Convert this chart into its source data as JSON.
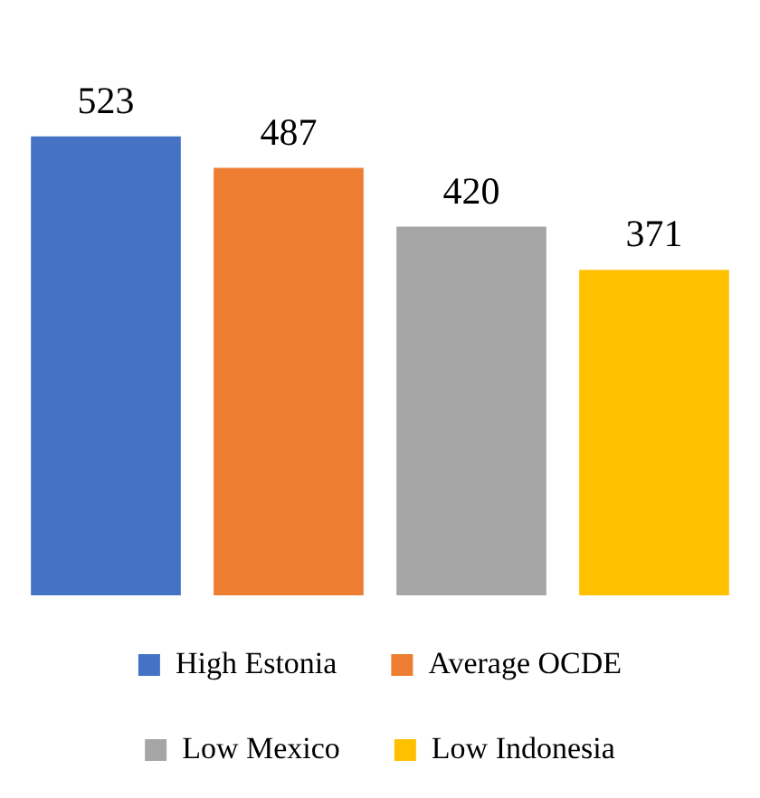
{
  "chart_data": {
    "type": "bar",
    "categories": [
      null
    ],
    "series": [
      {
        "name": "High Estonia",
        "color": "#4472c4",
        "values": [
          523
        ]
      },
      {
        "name": "Average OCDE",
        "color": "#ed7d31",
        "values": [
          487
        ]
      },
      {
        "name": "Low Mexico",
        "color": "#a5a5a5",
        "values": [
          420
        ]
      },
      {
        "name": "Low Indonesia",
        "color": "#ffc000",
        "values": [
          371
        ]
      }
    ],
    "tick_labels": false,
    "data_labels": true,
    "legend": "bottom"
  }
}
